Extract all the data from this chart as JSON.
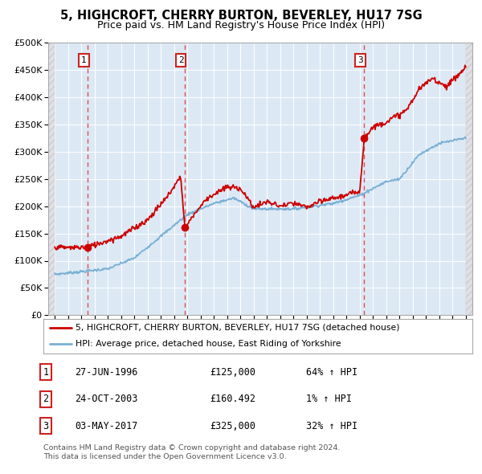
{
  "title": "5, HIGHCROFT, CHERRY BURTON, BEVERLEY, HU17 7SG",
  "subtitle": "Price paid vs. HM Land Registry's House Price Index (HPI)",
  "legend_line1": "5, HIGHCROFT, CHERRY BURTON, BEVERLEY, HU17 7SG (detached house)",
  "legend_line2": "HPI: Average price, detached house, East Riding of Yorkshire",
  "footer1": "Contains HM Land Registry data © Crown copyright and database right 2024.",
  "footer2": "This data is licensed under the Open Government Licence v3.0.",
  "sales": [
    {
      "num": 1,
      "date_label": "27-JUN-1996",
      "year": 1996.49,
      "price": 125000,
      "price_str": "£125,000",
      "hpi_pct": "64% ↑ HPI"
    },
    {
      "num": 2,
      "date_label": "24-OCT-2003",
      "year": 2003.81,
      "price": 160492,
      "price_str": "£160.492",
      "hpi_pct": "1% ↑ HPI"
    },
    {
      "num": 3,
      "date_label": "03-MAY-2017",
      "year": 2017.34,
      "price": 325000,
      "price_str": "£325,000",
      "hpi_pct": "32% ↑ HPI"
    }
  ],
  "sale_color": "#cc0000",
  "hpi_color": "#7ab0d4",
  "vline_color": "#dd3333",
  "xlim": [
    1993.5,
    2025.5
  ],
  "ylim": [
    0,
    500000
  ],
  "yticks": [
    0,
    50000,
    100000,
    150000,
    200000,
    250000,
    300000,
    350000,
    400000,
    450000,
    500000
  ],
  "xticks": [
    1994,
    1995,
    1996,
    1997,
    1998,
    1999,
    2000,
    2001,
    2002,
    2003,
    2004,
    2005,
    2006,
    2007,
    2008,
    2009,
    2010,
    2011,
    2012,
    2013,
    2014,
    2015,
    2016,
    2017,
    2018,
    2019,
    2020,
    2021,
    2022,
    2023,
    2024,
    2025
  ],
  "background_color": "#dce9f5",
  "grid_color": "#ffffff",
  "hatch_bg": "#e8e8e8"
}
